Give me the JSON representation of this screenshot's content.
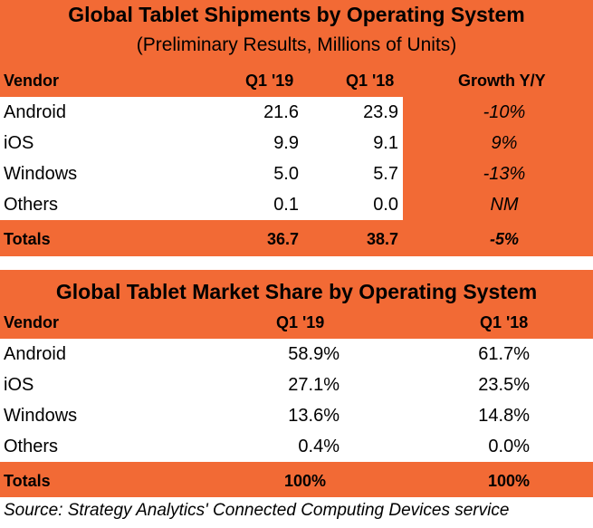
{
  "shipments": {
    "title": "Global Tablet Shipments by Operating System",
    "subtitle": "(Preliminary Results, Millions of Units)",
    "headers": {
      "vendor": "Vendor",
      "q1_19": "Q1 '19",
      "q1_18": "Q1 '18",
      "growth": "Growth Y/Y"
    },
    "rows": [
      {
        "vendor": "Android",
        "q1_19": "21.6",
        "q1_18": "23.9",
        "growth": "-10%"
      },
      {
        "vendor": "iOS",
        "q1_19": "9.9",
        "q1_18": "9.1",
        "growth": "9%"
      },
      {
        "vendor": "Windows",
        "q1_19": "5.0",
        "q1_18": "5.7",
        "growth": "-13%"
      },
      {
        "vendor": "Others",
        "q1_19": "0.1",
        "q1_18": "0.0",
        "growth": "NM"
      }
    ],
    "totals": {
      "label": "Totals",
      "q1_19": "36.7",
      "q1_18": "38.7",
      "growth": "-5%"
    }
  },
  "market_share": {
    "title": "Global Tablet Market Share by Operating System",
    "headers": {
      "vendor": "Vendor",
      "q1_19": "Q1 '19",
      "q1_18": "Q1 '18"
    },
    "rows": [
      {
        "vendor": "Android",
        "q1_19": "58.9%",
        "q1_18": "61.7%"
      },
      {
        "vendor": "iOS",
        "q1_19": "27.1%",
        "q1_18": "23.5%"
      },
      {
        "vendor": "Windows",
        "q1_19": "13.6%",
        "q1_18": "14.8%"
      },
      {
        "vendor": "Others",
        "q1_19": "0.4%",
        "q1_18": "0.0%"
      }
    ],
    "totals": {
      "label": "Totals",
      "q1_19": "100%",
      "q1_18": "100%"
    }
  },
  "source": "Source: Strategy Analytics' Connected Computing Devices service",
  "colors": {
    "accent": "#f26a35",
    "row_bg": "#ffffff"
  }
}
